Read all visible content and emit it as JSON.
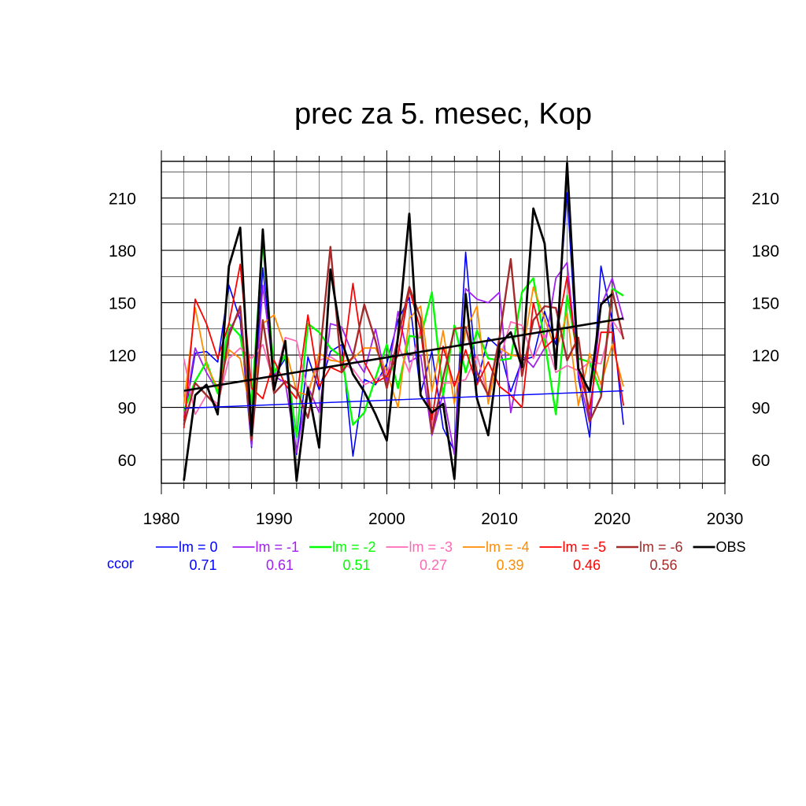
{
  "chart_data": {
    "type": "line",
    "title": "prec za 5. mesec, Kop",
    "xlabel": "",
    "ylabel": "",
    "xlim": [
      1980,
      2030
    ],
    "ylim": [
      46.5,
      231
    ],
    "x_ticks": [
      1980,
      1990,
      2000,
      2010,
      2020,
      2030
    ],
    "y_ticks": [
      60,
      90,
      120,
      150,
      180,
      210
    ],
    "grid": true,
    "legend_position": "bottom",
    "ccor_label": "ccor",
    "x": [
      1982,
      1983,
      1984,
      1985,
      1986,
      1987,
      1988,
      1989,
      1990,
      1991,
      1992,
      1993,
      1994,
      1995,
      1996,
      1997,
      1998,
      1999,
      2000,
      2001,
      2002,
      2003,
      2004,
      2005,
      2006,
      2007,
      2008,
      2009,
      2010,
      2011,
      2012,
      2013,
      2014,
      2015,
      2016,
      2017,
      2018,
      2019,
      2020,
      2021
    ],
    "series": [
      {
        "name": "lm = 0",
        "color": "#0000ff",
        "ccor": "0.71",
        "width": 1.6,
        "trend": [
          89.5,
          99.5
        ],
        "values": [
          82,
          121,
          122,
          116,
          160,
          140,
          67,
          170,
          108,
          118,
          63,
          119,
          100,
          122,
          126,
          62,
          106,
          103,
          115,
          140,
          153,
          98,
          122,
          78,
          65,
          179,
          104,
          130,
          124,
          99,
          117,
          119,
          145,
          126,
          213,
          107,
          73,
          171,
          140,
          80
        ]
      },
      {
        "name": "lm = -1",
        "color": "#a020f0",
        "ccor": "0.61",
        "width": 1.8,
        "values": [
          84,
          124,
          110,
          99,
          134,
          145,
          68,
          160,
          108,
          104,
          64,
          102,
          87,
          138,
          136,
          120,
          110,
          135,
          104,
          145,
          116,
          120,
          74,
          98,
          63,
          158,
          152,
          150,
          156,
          87,
          120,
          113,
          124,
          164,
          173,
          109,
          81,
          148,
          164,
          140
        ]
      },
      {
        "name": "lm = -2",
        "color": "#00ff00",
        "ccor": "0.51",
        "width": 2.4,
        "values": [
          88,
          105,
          116,
          98,
          138,
          131,
          92,
          185,
          110,
          120,
          73,
          138,
          133,
          124,
          119,
          80,
          87,
          107,
          126,
          101,
          131,
          130,
          156,
          97,
          137,
          110,
          134,
          118,
          117,
          118,
          156,
          164,
          128,
          86,
          154,
          118,
          116,
          98,
          158,
          154
        ]
      },
      {
        "name": "lm = -3",
        "color": "#ff69b4",
        "ccor": "0.27",
        "width": 1.8,
        "values": [
          118,
          86,
          97,
          92,
          118,
          124,
          118,
          126,
          104,
          130,
          128,
          99,
          117,
          119,
          115,
          112,
          103,
          106,
          110,
          126,
          110,
          135,
          80,
          104,
          104,
          106,
          120,
          96,
          117,
          139,
          137,
          118,
          132,
          110,
          114,
          111,
          116,
          115,
          140,
          130
        ]
      },
      {
        "name": "lm = -4",
        "color": "#ff8c00",
        "ccor": "0.39",
        "width": 1.8,
        "values": [
          92,
          147,
          114,
          101,
          123,
          118,
          85,
          138,
          143,
          124,
          99,
          97,
          121,
          117,
          116,
          118,
          124,
          124,
          110,
          90,
          141,
          148,
          99,
          134,
          92,
          134,
          148,
          92,
          124,
          120,
          119,
          159,
          141,
          122,
          144,
          91,
          121,
          103,
          126,
          102
        ]
      },
      {
        "name": "lm = -5",
        "color": "#ff0000",
        "ccor": "0.46",
        "width": 1.8,
        "values": [
          78,
          152,
          138,
          118,
          138,
          172,
          101,
          95,
          117,
          103,
          95,
          143,
          102,
          113,
          110,
          161,
          116,
          104,
          108,
          120,
          158,
          134,
          83,
          125,
          102,
          123,
          103,
          116,
          102,
          97,
          90,
          150,
          124,
          130,
          165,
          112,
          89,
          133,
          133,
          91
        ]
      },
      {
        "name": "lm = -6",
        "color": "#a52a2a",
        "ccor": "0.56",
        "width": 2.4,
        "values": [
          80,
          104,
          97,
          90,
          131,
          148,
          71,
          140,
          98,
          105,
          100,
          84,
          116,
          182,
          110,
          119,
          149,
          128,
          101,
          130,
          159,
          141,
          75,
          107,
          135,
          136,
          110,
          97,
          130,
          175,
          108,
          140,
          148,
          147,
          117,
          130,
          82,
          96,
          157,
          129
        ]
      },
      {
        "name": "OBS",
        "color": "#000000",
        "ccor": "",
        "width": 2.8,
        "trend": [
          99.5,
          141
        ],
        "values": [
          48,
          97,
          103,
          86,
          171,
          193,
          74,
          192,
          100,
          128,
          48,
          101,
          67,
          169,
          128,
          109,
          99,
          86,
          71,
          131,
          201,
          97,
          87,
          92,
          49,
          155,
          95,
          74,
          126,
          133,
          113,
          204,
          184,
          112,
          230,
          112,
          99,
          149,
          155,
          null
        ]
      }
    ]
  }
}
